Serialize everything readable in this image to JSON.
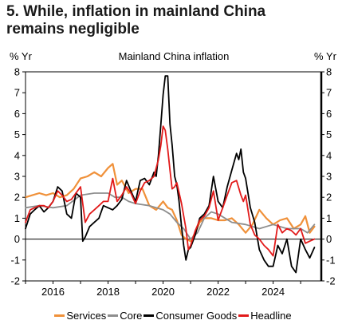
{
  "header": {
    "title_line1": "5. While, inflation in mainland China",
    "title_line2": "remains negligible"
  },
  "chart_data": {
    "type": "line",
    "title": "Mainland China inflation",
    "ylabel_left": "% Yr",
    "ylabel_right": "% Yr",
    "ylim": [
      -2,
      8
    ],
    "yticks": [
      -2,
      -1,
      0,
      1,
      2,
      3,
      4,
      5,
      6,
      7,
      8
    ],
    "xlim": [
      2015.0,
      2025.75
    ],
    "xticks": [
      {
        "value": 2016,
        "label": "2016"
      },
      {
        "value": 2018,
        "label": "2018"
      },
      {
        "value": 2020,
        "label": "2020"
      },
      {
        "value": 2022,
        "label": "2022"
      },
      {
        "value": 2024,
        "label": "2024"
      }
    ],
    "grid": false,
    "legend_position": "bottom",
    "series": [
      {
        "name": "Services",
        "color": "#f0913a",
        "x": [
          2015.0,
          2015.25,
          2015.5,
          2015.75,
          2016.0,
          2016.25,
          2016.5,
          2016.75,
          2017.0,
          2017.25,
          2017.5,
          2017.75,
          2018.0,
          2018.17,
          2018.33,
          2018.5,
          2018.75,
          2019.0,
          2019.25,
          2019.5,
          2019.75,
          2020.0,
          2020.17,
          2020.33,
          2020.5,
          2020.67,
          2020.83,
          2021.0,
          2021.17,
          2021.33,
          2021.5,
          2021.75,
          2022.0,
          2022.25,
          2022.5,
          2022.75,
          2023.0,
          2023.25,
          2023.5,
          2023.75,
          2024.0,
          2024.25,
          2024.5,
          2024.75,
          2025.0,
          2025.17,
          2025.33,
          2025.5
        ],
        "values": [
          2.0,
          2.1,
          2.2,
          2.1,
          2.2,
          2.0,
          2.1,
          2.4,
          2.9,
          3.0,
          3.2,
          3.0,
          3.4,
          3.6,
          2.6,
          2.8,
          2.2,
          2.4,
          2.4,
          1.6,
          1.4,
          1.8,
          1.5,
          1.4,
          0.9,
          0.2,
          0.0,
          -0.1,
          0.3,
          0.8,
          1.0,
          1.0,
          0.9,
          0.9,
          1.0,
          0.7,
          0.3,
          0.7,
          1.4,
          1.0,
          0.7,
          0.9,
          1.0,
          0.5,
          0.7,
          1.1,
          0.3,
          0.6
        ]
      },
      {
        "name": "Core",
        "color": "#8e8e8e",
        "x": [
          2015.0,
          2015.5,
          2016.0,
          2016.5,
          2017.0,
          2017.5,
          2018.0,
          2018.25,
          2018.5,
          2018.75,
          2019.0,
          2019.5,
          2020.0,
          2020.25,
          2020.5,
          2020.75,
          2021.0,
          2021.25,
          2021.5,
          2021.75,
          2022.0,
          2022.5,
          2023.0,
          2023.5,
          2024.0,
          2024.5,
          2025.0,
          2025.25,
          2025.5
        ],
        "values": [
          1.5,
          1.6,
          1.5,
          1.6,
          2.1,
          2.2,
          2.2,
          2.0,
          2.0,
          1.8,
          1.7,
          1.6,
          1.4,
          1.2,
          0.8,
          0.5,
          0.0,
          0.3,
          1.0,
          1.3,
          1.2,
          0.8,
          0.7,
          0.5,
          0.7,
          0.5,
          0.5,
          0.3,
          0.7
        ]
      },
      {
        "name": "Consumer Goods",
        "color": "#000000",
        "x": [
          2015.0,
          2015.17,
          2015.33,
          2015.5,
          2015.67,
          2015.83,
          2016.0,
          2016.17,
          2016.33,
          2016.5,
          2016.67,
          2016.83,
          2017.0,
          2017.08,
          2017.17,
          2017.33,
          2017.5,
          2017.67,
          2017.83,
          2018.0,
          2018.17,
          2018.33,
          2018.5,
          2018.67,
          2018.83,
          2019.0,
          2019.17,
          2019.33,
          2019.5,
          2019.67,
          2019.75,
          2019.83,
          2019.92,
          2020.0,
          2020.08,
          2020.17,
          2020.25,
          2020.33,
          2020.42,
          2020.5,
          2020.58,
          2020.67,
          2020.75,
          2020.83,
          2020.92,
          2021.0,
          2021.17,
          2021.33,
          2021.5,
          2021.67,
          2021.83,
          2022.0,
          2022.17,
          2022.33,
          2022.5,
          2022.67,
          2022.75,
          2022.83,
          2022.92,
          2023.0,
          2023.17,
          2023.33,
          2023.5,
          2023.67,
          2023.83,
          2024.0,
          2024.17,
          2024.33,
          2024.5,
          2024.67,
          2024.83,
          2025.0,
          2025.17,
          2025.33,
          2025.5
        ],
        "values": [
          0.5,
          1.2,
          1.4,
          1.6,
          1.3,
          1.5,
          1.8,
          2.5,
          2.3,
          1.2,
          1.0,
          2.2,
          2.0,
          -0.1,
          0.1,
          0.6,
          0.8,
          1.0,
          1.6,
          1.5,
          1.4,
          1.6,
          1.9,
          2.8,
          2.3,
          1.8,
          2.8,
          2.9,
          2.6,
          3.2,
          3.0,
          4.0,
          5.5,
          6.9,
          7.8,
          7.8,
          5.5,
          4.5,
          3.0,
          2.6,
          1.8,
          0.6,
          -0.3,
          -1.0,
          -0.5,
          -0.4,
          0.2,
          1.0,
          1.2,
          1.6,
          3.0,
          1.8,
          1.5,
          2.5,
          3.3,
          4.1,
          3.8,
          4.3,
          3.2,
          2.9,
          1.5,
          0.8,
          -0.5,
          -1.0,
          -1.3,
          -1.3,
          -0.3,
          -0.7,
          0.0,
          -1.3,
          -1.6,
          0.0,
          -0.5,
          -0.9,
          -0.4
        ]
      },
      {
        "name": "Headline",
        "color": "#e21a1a",
        "x": [
          2015.0,
          2015.17,
          2015.33,
          2015.5,
          2015.67,
          2015.83,
          2016.0,
          2016.17,
          2016.33,
          2016.5,
          2016.67,
          2016.83,
          2017.0,
          2017.17,
          2017.33,
          2017.5,
          2017.67,
          2017.83,
          2018.0,
          2018.17,
          2018.33,
          2018.5,
          2018.67,
          2018.83,
          2019.0,
          2019.17,
          2019.33,
          2019.5,
          2019.67,
          2019.83,
          2019.92,
          2020.0,
          2020.08,
          2020.17,
          2020.25,
          2020.33,
          2020.42,
          2020.5,
          2020.67,
          2020.83,
          2020.92,
          2021.0,
          2021.17,
          2021.33,
          2021.5,
          2021.67,
          2021.83,
          2022.0,
          2022.17,
          2022.33,
          2022.5,
          2022.67,
          2022.83,
          2022.92,
          2023.0,
          2023.17,
          2023.33,
          2023.5,
          2023.67,
          2023.83,
          2024.0,
          2024.17,
          2024.33,
          2024.5,
          2024.67,
          2024.83,
          2025.0,
          2025.17,
          2025.33,
          2025.5
        ],
        "values": [
          0.8,
          1.4,
          1.5,
          1.6,
          1.6,
          1.5,
          1.8,
          2.3,
          2.1,
          1.8,
          1.9,
          2.2,
          2.5,
          0.8,
          1.2,
          1.4,
          1.6,
          1.8,
          1.8,
          2.9,
          1.8,
          2.1,
          2.5,
          2.2,
          1.7,
          2.3,
          2.7,
          2.8,
          3.0,
          3.8,
          4.5,
          5.4,
          5.2,
          4.3,
          3.3,
          2.4,
          2.5,
          2.7,
          1.7,
          0.5,
          -0.5,
          -0.3,
          0.4,
          0.9,
          1.1,
          1.5,
          2.3,
          0.9,
          1.5,
          2.1,
          2.7,
          2.8,
          2.1,
          1.8,
          2.1,
          0.7,
          0.2,
          0.0,
          -0.3,
          -0.5,
          -0.8,
          0.7,
          0.3,
          0.5,
          0.4,
          0.2,
          0.5,
          -0.2,
          -0.1,
          0.0
        ]
      }
    ]
  }
}
